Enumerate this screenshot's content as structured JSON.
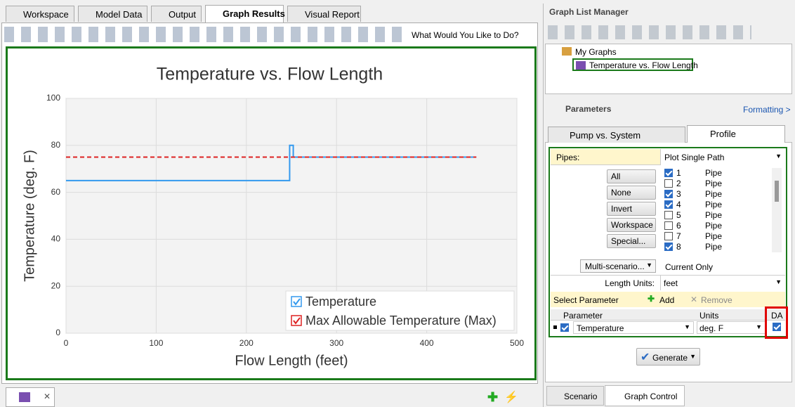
{
  "tabs": [
    "Workspace",
    "Model Data",
    "Output",
    "Graph Results",
    "Visual Report"
  ],
  "toolbar_link": "What Would You Like to Do?",
  "chart_data": {
    "type": "line",
    "title": "Temperature vs. Flow Length",
    "x_label": "Flow Length (feet)",
    "y_label": "Temperature (deg. F)",
    "xlim": [
      0,
      500
    ],
    "xticks": [
      0,
      100,
      200,
      300,
      400,
      500
    ],
    "ylim": [
      0,
      100
    ],
    "yticks": [
      0,
      20,
      40,
      60,
      80,
      100
    ],
    "grid": true,
    "legend": "lower right",
    "series": [
      {
        "name": "Temperature",
        "color": "#3399ee",
        "line_style": "solid",
        "x": [
          0,
          248,
          248,
          252,
          252,
          455
        ],
        "values": [
          65,
          65,
          80,
          80,
          75,
          75
        ]
      },
      {
        "name": "Max Allowable Temperature (Max)",
        "color": "#dd2222",
        "line_style": "dashed",
        "x": [
          0,
          455
        ],
        "values": [
          75,
          75
        ]
      }
    ]
  },
  "graph_list_manager": {
    "title": "Graph List Manager",
    "root": "My Graphs",
    "item": "Temperature vs. Flow Length"
  },
  "parameters": {
    "title": "Parameters",
    "formatting": "Formatting >",
    "tabs": [
      "Pump vs. System",
      "Profile"
    ],
    "pipes_label": "Pipes:",
    "pipes_mode": "Plot Single Path",
    "buttons": [
      "All",
      "None",
      "Invert",
      "Workspace",
      "Special..."
    ],
    "pipe_list": [
      {
        "id": "1",
        "label": "Pipe",
        "checked": true
      },
      {
        "id": "2",
        "label": "Pipe",
        "checked": false
      },
      {
        "id": "3",
        "label": "Pipe",
        "checked": true
      },
      {
        "id": "4",
        "label": "Pipe",
        "checked": true
      },
      {
        "id": "5",
        "label": "Pipe",
        "checked": false
      },
      {
        "id": "6",
        "label": "Pipe",
        "checked": false
      },
      {
        "id": "7",
        "label": "Pipe",
        "checked": false
      },
      {
        "id": "8",
        "label": "Pipe",
        "checked": true
      }
    ],
    "multi_scenario": "Multi-scenario...",
    "scenario_mode": "Current Only",
    "length_units_label": "Length Units:",
    "length_units": "feet",
    "select_parameter": "Select Parameter",
    "add": "Add",
    "remove": "Remove",
    "columns": [
      "Parameter",
      "Units",
      "DA"
    ],
    "row": {
      "parameter": "Temperature",
      "units": "deg. F",
      "checked": true,
      "da": true
    },
    "generate": "Generate"
  },
  "bottom_tabs": [
    "Scenario",
    "Graph Control"
  ]
}
